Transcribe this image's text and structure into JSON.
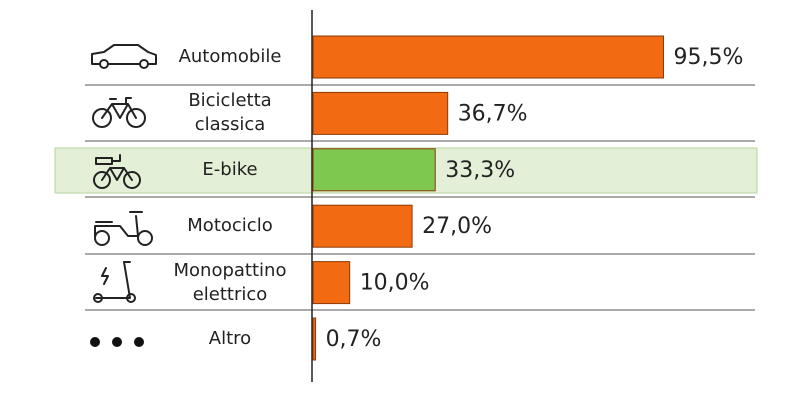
{
  "chart_data": {
    "type": "hbar",
    "categories": [
      "Automobile",
      "Bicicletta classica",
      "E-bike",
      "Motociclo",
      "Monopattino elettrico",
      "Altro"
    ],
    "values": [
      95.5,
      36.7,
      33.3,
      27.0,
      10.0,
      0.7
    ],
    "value_labels": [
      "95,5%",
      "36,7%",
      "33,3%",
      "27,0%",
      "10,0%",
      "0,7%"
    ],
    "colors": [
      "#f26b12",
      "#f26b12",
      "#7fc84f",
      "#f26b12",
      "#f26b12",
      "#f26b12"
    ],
    "xlim": [
      0,
      100
    ]
  }
}
